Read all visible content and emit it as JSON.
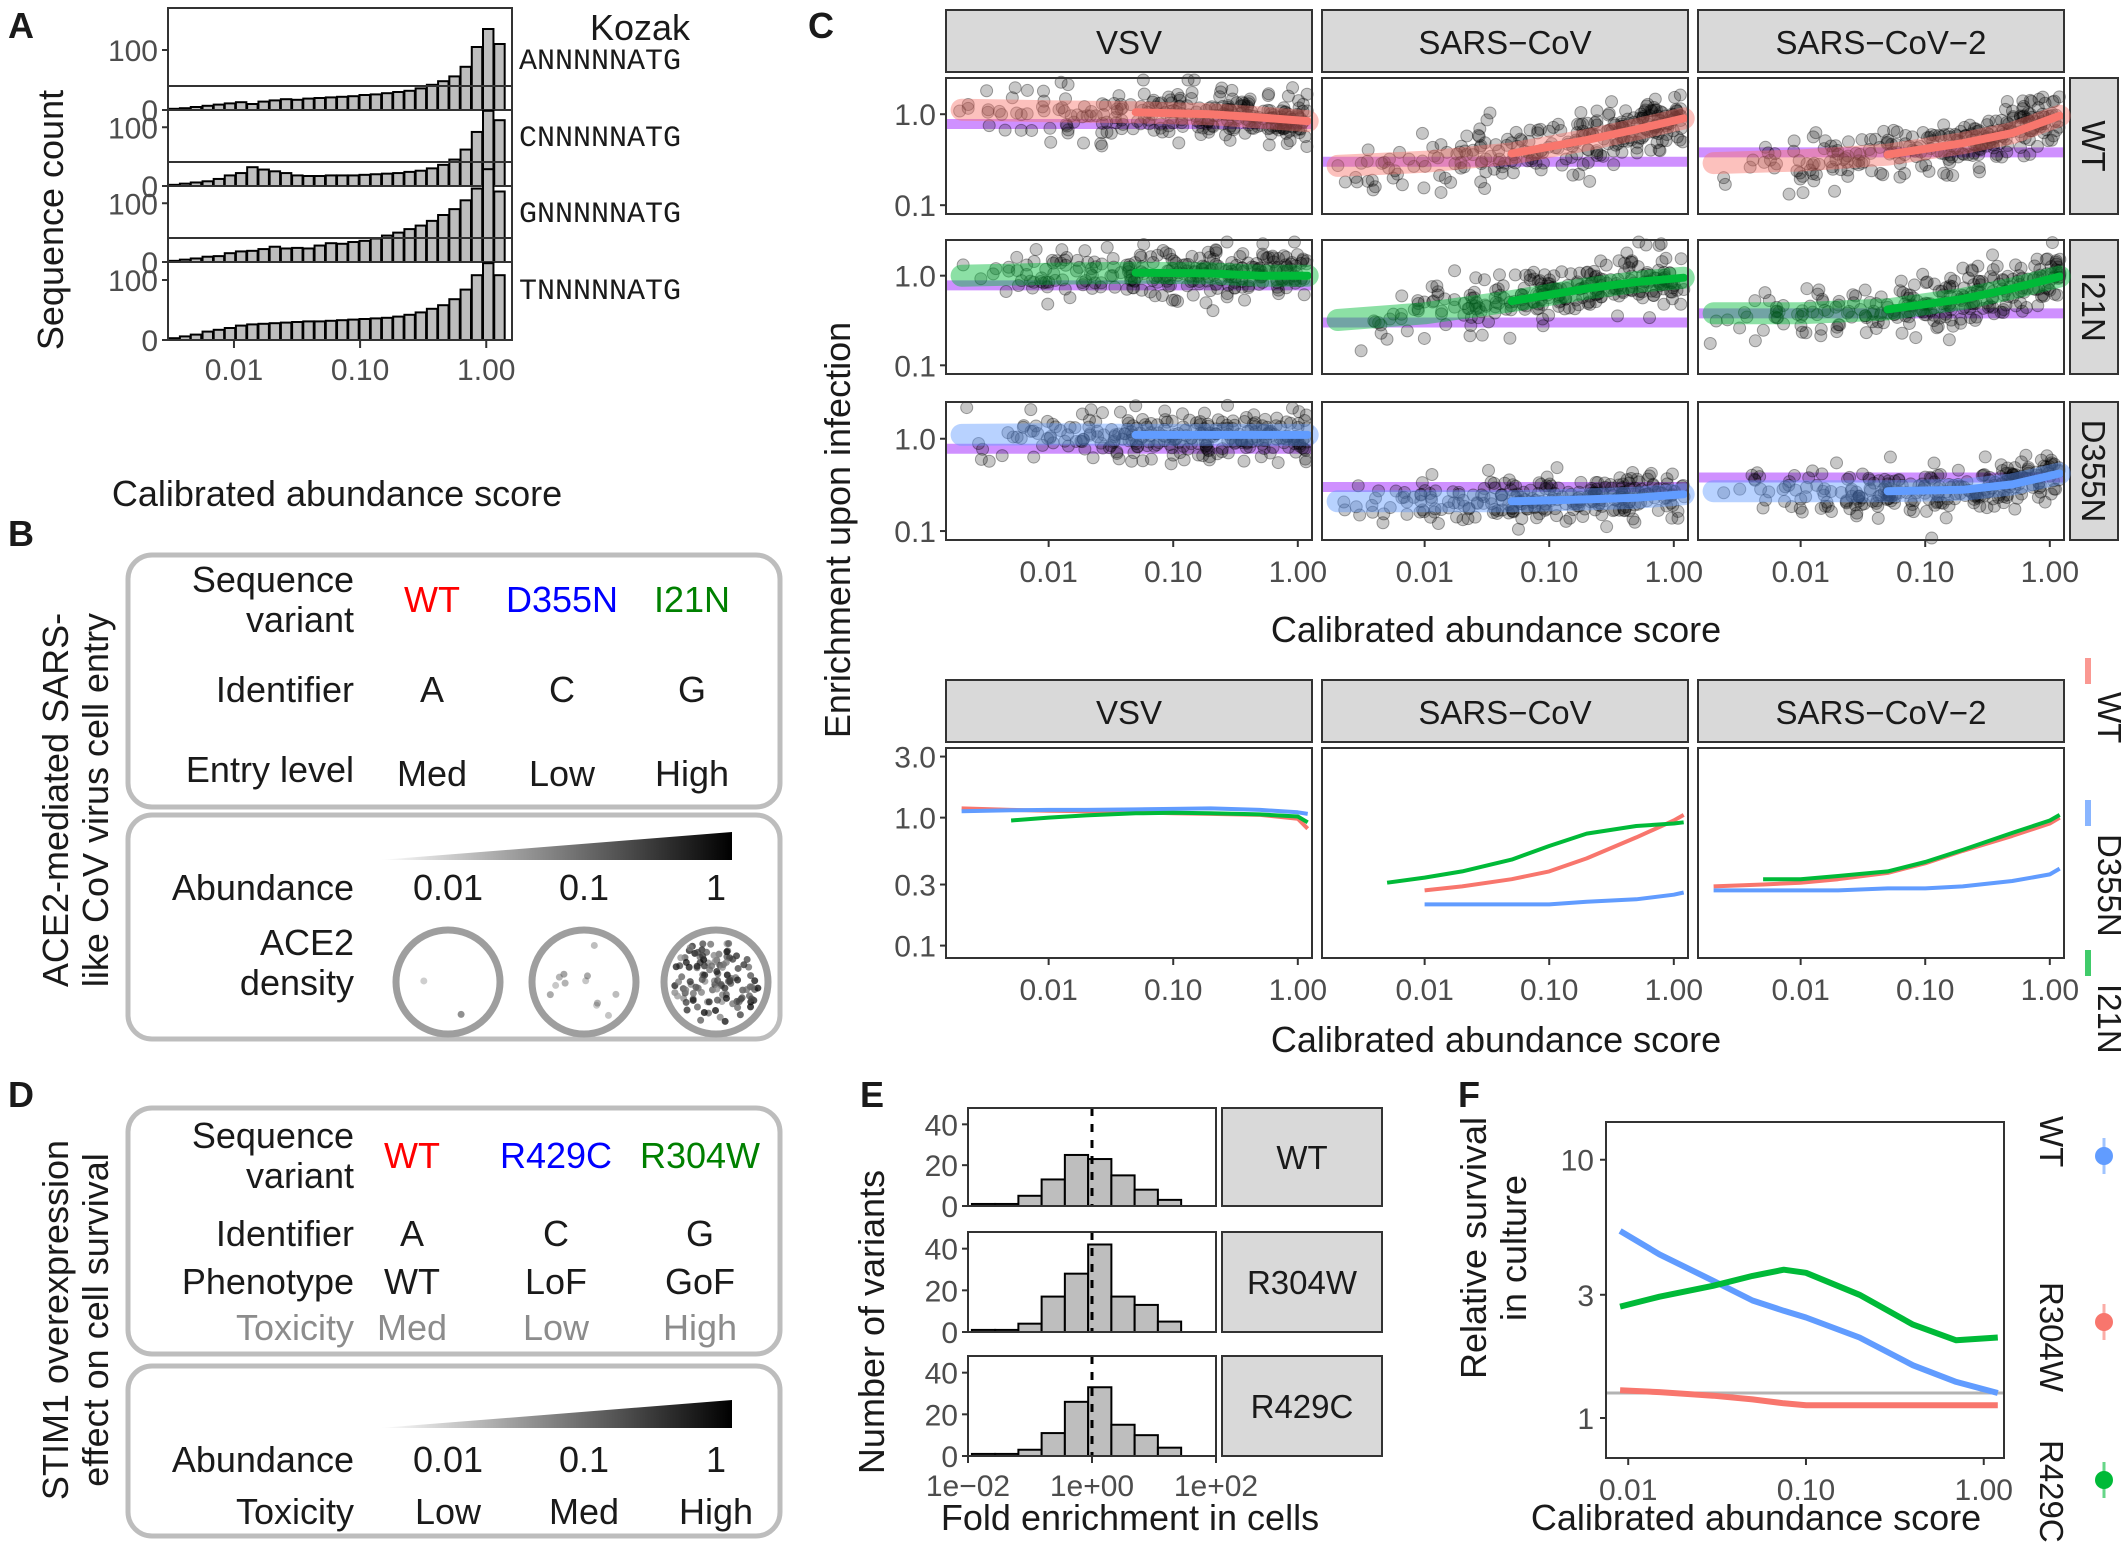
{
  "panel_letters": [
    "A",
    "B",
    "C",
    "D",
    "E",
    "F"
  ],
  "colors": {
    "wt": "#F8766D",
    "d355n": "#619CFF",
    "i21n": "#00BA38",
    "wt_text": "#FF0000",
    "d355n_text": "#0000FF",
    "i21n_text": "#008000",
    "purple": "#C77CFF",
    "strip": "#D9D9D9",
    "bar_fill": "#BEBEBE"
  },
  "chart_data": [
    {
      "id": "A",
      "type": "bar",
      "title": "Kozak",
      "xlabel": "Calibrated abundance score",
      "ylabel": "Sequence count",
      "x_scale": "log10",
      "xlim": [
        0.003,
        1.6
      ],
      "ylim": [
        0,
        160
      ],
      "x_ticks": [
        "0.01",
        "0.10",
        "1.00"
      ],
      "y_ticks": [
        "0",
        "100"
      ],
      "bin_centers": [
        0.0034,
        0.0041,
        0.005,
        0.0062,
        0.0076,
        0.0093,
        0.0114,
        0.014,
        0.0172,
        0.0211,
        0.0259,
        0.0318,
        0.039,
        0.0479,
        0.0588,
        0.0722,
        0.0886,
        0.1088,
        0.1335,
        0.1639,
        0.2012,
        0.2469,
        0.3031,
        0.3721,
        0.4567,
        0.5606,
        0.6881,
        0.8447,
        1.0368,
        1.2727
      ],
      "series": [
        {
          "name": "ANNNNNATG",
          "values": [
            2,
            3,
            5,
            7,
            9,
            11,
            13,
            10,
            14,
            16,
            18,
            17,
            19,
            20,
            21,
            22,
            23,
            25,
            26,
            28,
            30,
            32,
            36,
            42,
            48,
            56,
            72,
            105,
            135,
            110
          ]
        },
        {
          "name": "CNNNNNATG",
          "values": [
            2,
            4,
            6,
            8,
            12,
            18,
            22,
            32,
            28,
            25,
            22,
            18,
            17,
            17,
            18,
            18,
            18,
            19,
            20,
            21,
            22,
            24,
            26,
            30,
            36,
            45,
            62,
            92,
            128,
            112
          ]
        },
        {
          "name": "GNNNNNATG",
          "values": [
            2,
            4,
            6,
            9,
            10,
            15,
            18,
            19,
            22,
            26,
            23,
            24,
            23,
            28,
            32,
            31,
            34,
            36,
            40,
            45,
            50,
            56,
            62,
            70,
            80,
            90,
            105,
            125,
            158,
            120
          ]
        },
        {
          "name": "TNNNNNATG",
          "values": [
            3,
            6,
            9,
            14,
            17,
            20,
            24,
            26,
            27,
            28,
            29,
            30,
            31,
            31,
            32,
            33,
            34,
            35,
            36,
            37,
            39,
            42,
            46,
            52,
            58,
            68,
            84,
            108,
            128,
            108
          ]
        }
      ]
    },
    {
      "id": "C-top",
      "type": "scatter",
      "xlabel": "Calibrated abundance score",
      "ylabel": "Enrichment upon infection",
      "x_scale": "log10",
      "y_scale": "log10",
      "xlim": [
        0.0015,
        1.3
      ],
      "ylim": [
        0.08,
        2.5
      ],
      "x_ticks": [
        "0.01",
        "0.10",
        "1.00"
      ],
      "y_ticks": [
        "0.1",
        "1.0"
      ],
      "columns": [
        "VSV",
        "SARS−CoV",
        "SARS−CoV−2"
      ],
      "rows": [
        "WT",
        "I21N",
        "D355N"
      ],
      "smooth_x": [
        0.002,
        0.01,
        0.05,
        0.2,
        0.5,
        1.2
      ],
      "facets": [
        {
          "col": "VSV",
          "row": "WT",
          "hline": 0.78,
          "smooth": [
            1.12,
            1.08,
            1.05,
            1.0,
            0.92,
            0.84
          ],
          "spread": 0.32
        },
        {
          "col": "SARS−CoV",
          "row": "WT",
          "hline": 0.3,
          "smooth": [
            0.27,
            0.3,
            0.37,
            0.52,
            0.68,
            0.9
          ],
          "spread": 0.33
        },
        {
          "col": "SARS−CoV−2",
          "row": "WT",
          "hline": 0.38,
          "smooth": [
            0.29,
            0.31,
            0.36,
            0.48,
            0.62,
            0.96
          ],
          "spread": 0.33
        },
        {
          "col": "VSV",
          "row": "I21N",
          "hline": 0.78,
          "smooth": [
            1.0,
            1.05,
            1.08,
            1.06,
            1.0,
            1.0
          ],
          "spread": 0.3
        },
        {
          "col": "SARS−CoV",
          "row": "I21N",
          "hline": 0.3,
          "smooth": [
            0.32,
            0.38,
            0.52,
            0.72,
            0.85,
            0.95
          ],
          "spread": 0.33
        },
        {
          "col": "SARS−CoV−2",
          "row": "I21N",
          "hline": 0.38,
          "smooth": [
            0.38,
            0.38,
            0.42,
            0.55,
            0.72,
            0.98
          ],
          "spread": 0.33
        },
        {
          "col": "VSV",
          "row": "D355N",
          "hline": 0.78,
          "smooth": [
            1.1,
            1.12,
            1.1,
            1.1,
            1.1,
            1.1
          ],
          "spread": 0.3
        },
        {
          "col": "SARS−CoV",
          "row": "D355N",
          "hline": 0.3,
          "smooth": [
            0.21,
            0.21,
            0.21,
            0.22,
            0.23,
            0.25
          ],
          "spread": 0.28
        },
        {
          "col": "SARS−CoV−2",
          "row": "D355N",
          "hline": 0.38,
          "smooth": [
            0.27,
            0.27,
            0.27,
            0.28,
            0.32,
            0.42
          ],
          "spread": 0.28
        }
      ]
    },
    {
      "id": "C-bottom",
      "type": "line",
      "xlabel": "Calibrated abundance score",
      "x_scale": "log10",
      "y_scale": "log10",
      "xlim": [
        0.0015,
        1.3
      ],
      "ylim": [
        0.08,
        3.5
      ],
      "x_ticks": [
        "0.01",
        "0.10",
        "1.00"
      ],
      "y_ticks": [
        "0.1",
        "0.3",
        "1.0",
        "3.0"
      ],
      "columns": [
        "VSV",
        "SARS−CoV",
        "SARS−CoV−2"
      ],
      "legend": [
        "WT",
        "D355N",
        "I21N"
      ],
      "legend_position": "right",
      "x": [
        0.002,
        0.005,
        0.01,
        0.02,
        0.05,
        0.1,
        0.2,
        0.5,
        1.0,
        1.2
      ],
      "facets": [
        {
          "col": "VSV",
          "series": [
            {
              "name": "WT",
              "values": [
                1.18,
                1.15,
                1.13,
                1.12,
                1.1,
                1.08,
                1.07,
                1.05,
                0.98,
                0.82
              ]
            },
            {
              "name": "D355N",
              "values": [
                1.12,
                1.14,
                1.15,
                1.15,
                1.16,
                1.17,
                1.18,
                1.15,
                1.1,
                1.07
              ]
            },
            {
              "name": "I21N",
              "values": [
                null,
                0.95,
                1.0,
                1.04,
                1.08,
                1.09,
                1.08,
                1.06,
                1.02,
                0.92
              ]
            }
          ]
        },
        {
          "col": "SARS−CoV",
          "series": [
            {
              "name": "WT",
              "values": [
                null,
                null,
                0.27,
                0.29,
                0.33,
                0.38,
                0.48,
                0.7,
                0.95,
                1.05
              ]
            },
            {
              "name": "D355N",
              "values": [
                null,
                null,
                0.21,
                0.21,
                0.21,
                0.21,
                0.22,
                0.23,
                0.25,
                0.26
              ]
            },
            {
              "name": "I21N",
              "values": [
                null,
                0.31,
                0.34,
                0.38,
                0.47,
                0.6,
                0.75,
                0.86,
                0.9,
                0.92
              ]
            }
          ]
        },
        {
          "col": "SARS−CoV−2",
          "series": [
            {
              "name": "WT",
              "values": [
                0.29,
                0.3,
                0.31,
                0.33,
                0.37,
                0.44,
                0.55,
                0.72,
                0.9,
                1.0
              ]
            },
            {
              "name": "D355N",
              "values": [
                0.27,
                0.27,
                0.27,
                0.27,
                0.28,
                0.28,
                0.29,
                0.32,
                0.36,
                0.4
              ]
            },
            {
              "name": "I21N",
              "values": [
                null,
                0.33,
                0.33,
                0.35,
                0.38,
                0.45,
                0.56,
                0.76,
                0.95,
                1.05
              ]
            }
          ]
        }
      ]
    },
    {
      "id": "E",
      "type": "bar",
      "xlabel": "Fold enrichment in cells",
      "ylabel": "Number of variants",
      "x_scale": "log10",
      "xlim": [
        0.01,
        100
      ],
      "ylim": [
        0,
        48
      ],
      "x_ticks": [
        "1e−02",
        "1e+00",
        "1e+02"
      ],
      "y_ticks": [
        "0",
        "20",
        "40"
      ],
      "bin_centers": [
        0.0178,
        0.0422,
        0.1,
        0.237,
        0.562,
        1.334,
        3.16,
        7.5,
        17.8
      ],
      "series": [
        {
          "name": "WT",
          "values": [
            1,
            1,
            5,
            13,
            25,
            23,
            15,
            8,
            3
          ]
        },
        {
          "name": "R304W",
          "values": [
            1,
            1,
            4,
            17,
            28,
            42,
            17,
            13,
            5
          ]
        },
        {
          "name": "R429C",
          "values": [
            1,
            1,
            3,
            11,
            26,
            33,
            15,
            10,
            4
          ]
        }
      ]
    },
    {
      "id": "F",
      "type": "line",
      "xlabel": "Calibrated abundance score",
      "ylabel": "Relative survival in culture",
      "x_scale": "log10",
      "y_scale": "log10",
      "xlim": [
        0.0075,
        1.3
      ],
      "ylim": [
        0.7,
        14
      ],
      "x_ticks": [
        "0.01",
        "0.10",
        "1.00"
      ],
      "y_ticks": [
        "1",
        "3",
        "10"
      ],
      "hline": 1.25,
      "legend": [
        "WT",
        "R304W",
        "R429C"
      ],
      "legend_position": "right",
      "x": [
        0.009,
        0.015,
        0.03,
        0.05,
        0.075,
        0.1,
        0.2,
        0.4,
        0.7,
        1.2
      ],
      "series": [
        {
          "name": "WT",
          "values": [
            5.3,
            4.3,
            3.4,
            2.85,
            2.6,
            2.45,
            2.05,
            1.6,
            1.38,
            1.25
          ]
        },
        {
          "name": "R304W",
          "values": [
            1.28,
            1.26,
            1.22,
            1.18,
            1.14,
            1.12,
            1.12,
            1.12,
            1.12,
            1.12
          ]
        },
        {
          "name": "R429C",
          "values": [
            2.7,
            2.95,
            3.25,
            3.55,
            3.75,
            3.65,
            3.0,
            2.3,
            2.0,
            2.05
          ]
        }
      ]
    }
  ],
  "panel_B": {
    "side_label_1": "ACE2-mediated  SARS-",
    "side_label_2": "like CoV virus cell entry",
    "row_labels": [
      "Sequence",
      "variant",
      "Identifier",
      "Entry level"
    ],
    "variants": [
      "WT",
      "D355N",
      "I21N"
    ],
    "identifiers": [
      "A",
      "C",
      "G"
    ],
    "levels": [
      "Med",
      "Low",
      "High"
    ],
    "abundance_label": "Abundance",
    "abundance_values": [
      "0.01",
      "0.1",
      "1"
    ],
    "density_label_1": "ACE2",
    "density_label_2": "density"
  },
  "panel_D": {
    "side_label_1": "STIM1 overexpression",
    "side_label_2": "effect on cell survival",
    "row_labels": [
      "Sequence",
      "variant",
      "Identifier",
      "Phenotype",
      "Toxicity"
    ],
    "variants": [
      "WT",
      "R429C",
      "R304W"
    ],
    "identifiers": [
      "A",
      "C",
      "G"
    ],
    "phenotypes": [
      "WT",
      "LoF",
      "GoF"
    ],
    "toxicities": [
      "Med",
      "Low",
      "High"
    ],
    "abundance_label": "Abundance",
    "abundance_values": [
      "0.01",
      "0.1",
      "1"
    ],
    "toxicity_label": "Toxicity",
    "toxicity_values": [
      "Low",
      "Med",
      "High"
    ]
  },
  "F_ylabel_1": "Relative survival",
  "F_ylabel_2": "in culture"
}
